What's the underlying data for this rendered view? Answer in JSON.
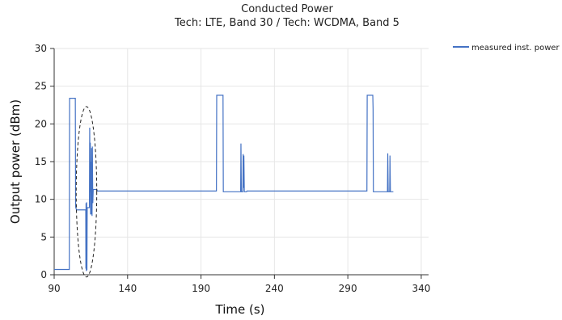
{
  "chart_data": {
    "type": "line",
    "title": "Conducted Power",
    "subtitle": "Tech: LTE, Band 30 / Tech: WCDMA, Band 5",
    "xlabel": "Time (s)",
    "ylabel": "Output power (dBm)",
    "xlim": [
      90,
      345
    ],
    "ylim": [
      0,
      30
    ],
    "x_ticks": [
      90,
      140,
      190,
      240,
      290,
      340
    ],
    "y_ticks": [
      0,
      5,
      10,
      15,
      20,
      25,
      30
    ],
    "grid": true,
    "legend_position": "top-right",
    "series": [
      {
        "name": "measured inst. power",
        "color": "#4472c4",
        "points": [
          [
            90,
            0.7
          ],
          [
            100.3,
            0.7
          ],
          [
            100.5,
            23.4
          ],
          [
            104.4,
            23.4
          ],
          [
            104.6,
            9.0
          ],
          [
            105.2,
            8.6
          ],
          [
            111.5,
            8.6
          ],
          [
            111.6,
            0.8
          ],
          [
            111.7,
            9.5
          ],
          [
            111.9,
            0.5
          ],
          [
            112.1,
            9.6
          ],
          [
            112.3,
            0.6
          ],
          [
            112.5,
            8.9
          ],
          [
            114.0,
            8.9
          ],
          [
            114.2,
            19.5
          ],
          [
            114.4,
            11.0
          ],
          [
            114.6,
            17.5
          ],
          [
            114.8,
            8.0
          ],
          [
            115.0,
            15.0
          ],
          [
            115.2,
            8.0
          ],
          [
            115.5,
            16.8
          ],
          [
            115.8,
            7.8
          ],
          [
            116.0,
            17.0
          ],
          [
            116.3,
            9.5
          ],
          [
            116.6,
            11.3
          ],
          [
            119.0,
            11.3
          ],
          [
            119.5,
            11.1
          ],
          [
            200.5,
            11.1
          ],
          [
            200.7,
            23.8
          ],
          [
            205.0,
            23.8
          ],
          [
            205.2,
            11.0
          ],
          [
            217.0,
            11.0
          ],
          [
            217.2,
            17.4
          ],
          [
            217.5,
            11.0
          ],
          [
            218.5,
            11.0
          ],
          [
            218.7,
            16.0
          ],
          [
            219.0,
            11.5
          ],
          [
            219.2,
            15.8
          ],
          [
            219.5,
            11.0
          ],
          [
            221.0,
            11.0
          ],
          [
            221.3,
            11.1
          ],
          [
            303.0,
            11.1
          ],
          [
            303.2,
            23.8
          ],
          [
            307.0,
            23.8
          ],
          [
            307.2,
            22.0
          ],
          [
            307.4,
            11.0
          ],
          [
            317.0,
            11.0
          ],
          [
            317.2,
            16.1
          ],
          [
            317.5,
            11.0
          ],
          [
            318.5,
            11.0
          ],
          [
            318.7,
            15.8
          ],
          [
            319.0,
            11.0
          ],
          [
            321.0,
            11.0
          ]
        ]
      }
    ],
    "annotations": [
      {
        "type": "dashed-ellipse",
        "cx": 112,
        "cy": 11,
        "rx": 7,
        "ry": 11.3
      }
    ]
  }
}
